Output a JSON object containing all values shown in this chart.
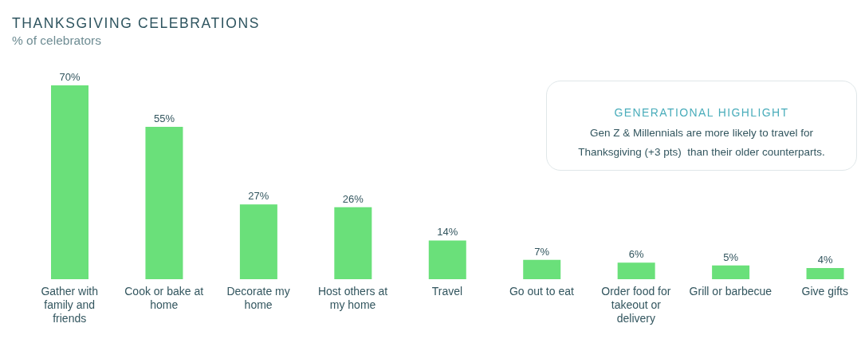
{
  "chart_data": {
    "type": "bar",
    "title": "THANKSGIVING CELEBRATIONS",
    "subtitle": "% of celebrators",
    "categories": [
      "Gather with family and friends",
      "Cook or bake at home",
      "Decorate my home",
      "Host others at my home",
      "Travel",
      "Go out to eat",
      "Order food for takeout or delivery",
      "Grill or barbecue",
      "Give gifts"
    ],
    "values": [
      70,
      55,
      27,
      26,
      14,
      7,
      6,
      5,
      4
    ],
    "color": "#6ae07a",
    "value_labels": [
      "70%",
      "55%",
      "27%",
      "26%",
      "14%",
      "7%",
      "6%",
      "5%",
      "4%"
    ],
    "annotations": [
      "GENERATIONAL HIGHLIGHT",
      "Gen Z & Millennials are more likely to travel for Thanksgiving (+3 pts)  than their older counterparts."
    ]
  }
}
